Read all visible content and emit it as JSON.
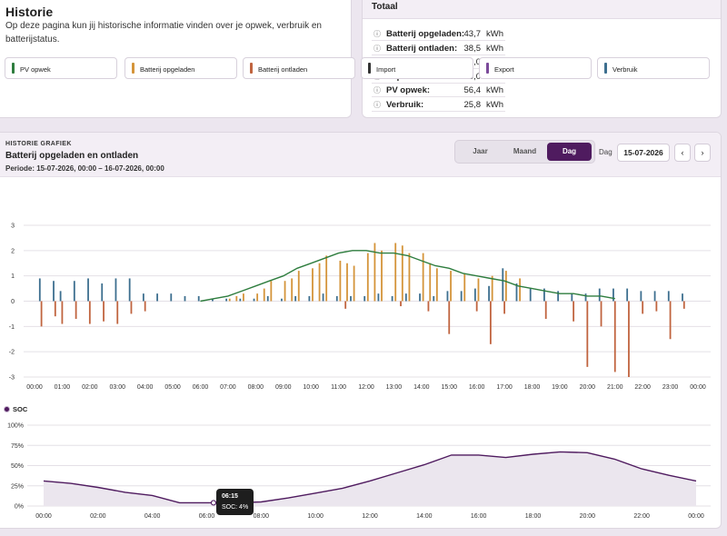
{
  "intro": {
    "title": "Historie",
    "description": "Op deze pagina kun jij historische informatie vinden over je opwek, verbruik en batterijstatus."
  },
  "totals": {
    "title": "Totaal",
    "unit": "kWh",
    "rows": [
      {
        "label": "Batterij opgeladen:",
        "value": "43,7"
      },
      {
        "label": "Batterij ontladen:",
        "value": "38,5"
      },
      {
        "label": "Import:",
        "value": "0,0"
      },
      {
        "label": "Export:",
        "value": "0,0"
      },
      {
        "label": "PV opwek:",
        "value": "56,4"
      },
      {
        "label": "Verbruik:",
        "value": "25,8"
      }
    ]
  },
  "history": {
    "subtitle": "HISTORIE GRAFIEK",
    "title": "Batterij opgeladen en ontladen",
    "period": "Periode: 15-07-2026, 00:00 – 16-07-2026, 00:00",
    "tabs": [
      "Jaar",
      "Maand",
      "Dag"
    ],
    "active_tab": "Dag",
    "date_label": "Dag",
    "date_value": "15-07-2026",
    "prev": "‹",
    "next": "›"
  },
  "legend": [
    {
      "label": "PV opwek",
      "color": "#2e7d3e"
    },
    {
      "label": "Batterij opgeladen",
      "color": "#d4943a"
    },
    {
      "label": "Batterij ontladen",
      "color": "#c0643f"
    },
    {
      "label": "Import",
      "color": "#333333"
    },
    {
      "label": "Export",
      "color": "#7b4a9a"
    },
    {
      "label": "Verbruik",
      "color": "#3d6f8f"
    }
  ],
  "soc_legend": "SOC",
  "tooltip": {
    "time": "06:15",
    "text": "SOC: 4%"
  },
  "chart_data": [
    {
      "type": "bar",
      "x_ticks": [
        "00:00",
        "01:00",
        "02:00",
        "03:00",
        "04:00",
        "05:00",
        "06:00",
        "07:00",
        "08:00",
        "09:00",
        "10:00",
        "11:00",
        "12:00",
        "13:00",
        "14:00",
        "15:00",
        "16:00",
        "17:00",
        "18:00",
        "19:00",
        "20:00",
        "21:00",
        "22:00",
        "23:00",
        "00:00"
      ],
      "y_ticks": [
        "3",
        "2",
        "1",
        "0",
        "-1",
        "-2",
        "-3"
      ],
      "ylim": [
        -3,
        3
      ],
      "series": [
        {
          "name": "Verbruik",
          "x": [
            0.25,
            0.75,
            1.0,
            1.5,
            2.0,
            2.5,
            3.0,
            3.5,
            4.0,
            4.5,
            5.0,
            5.5,
            6.0,
            6.5,
            7.0,
            7.5,
            8.0,
            8.5,
            9.0,
            9.5,
            10.0,
            10.5,
            11.0,
            11.5,
            12.0,
            12.5,
            13.0,
            13.5,
            14.0,
            14.5,
            15.0,
            15.5,
            16.0,
            16.5,
            17.0,
            17.5,
            18.0,
            18.5,
            19.0,
            19.5,
            20.0,
            20.5,
            21.0,
            21.5,
            22.0,
            22.5,
            23.0,
            23.5
          ],
          "values": [
            0.9,
            0.8,
            0.4,
            0.8,
            0.9,
            0.7,
            0.9,
            0.9,
            0.3,
            0.3,
            0.3,
            0.2,
            0.2,
            0.1,
            0.1,
            0.1,
            0.1,
            0.2,
            0.1,
            0.2,
            0.2,
            0.3,
            0.2,
            0.2,
            0.2,
            0.3,
            0.2,
            0.3,
            0.3,
            0.2,
            0.4,
            0.4,
            0.5,
            0.6,
            1.3,
            0.7,
            0.5,
            0.5,
            0.4,
            0.3,
            0.3,
            0.5,
            0.5,
            0.5,
            0.4,
            0.4,
            0.4,
            0.3
          ]
        },
        {
          "name": "Batterij opgeladen",
          "x": [
            7.0,
            7.25,
            7.5,
            8.0,
            8.25,
            8.5,
            9.0,
            9.25,
            9.5,
            10.0,
            10.25,
            10.5,
            11.0,
            11.25,
            11.5,
            12.0,
            12.25,
            12.5,
            13.0,
            13.25,
            13.5,
            14.0,
            14.25,
            14.5,
            15.0,
            15.5,
            16.0,
            16.5,
            17.0,
            17.5
          ],
          "values": [
            0.1,
            0.2,
            0.3,
            0.3,
            0.5,
            0.8,
            0.8,
            0.9,
            1.2,
            1.3,
            1.5,
            1.8,
            1.6,
            1.5,
            1.4,
            1.9,
            2.3,
            2.0,
            2.3,
            2.2,
            1.9,
            1.9,
            1.5,
            1.3,
            1.2,
            1.1,
            0.9,
            1.0,
            1.2,
            0.9
          ]
        },
        {
          "name": "Batterij ontladen",
          "x": [
            0.25,
            0.75,
            1.0,
            1.5,
            2.0,
            2.5,
            3.0,
            3.5,
            4.0,
            11.25,
            13.25,
            14.25,
            15.0,
            16.0,
            16.5,
            17.0,
            18.5,
            19.5,
            20.0,
            20.5,
            21.0,
            21.5,
            22.0,
            22.5,
            23.0,
            23.5
          ],
          "values": [
            -1.0,
            -0.6,
            -0.9,
            -0.7,
            -0.9,
            -0.8,
            -0.9,
            -0.5,
            -0.4,
            -0.3,
            -0.2,
            -0.4,
            -1.3,
            -0.4,
            -1.7,
            -0.5,
            -0.7,
            -0.8,
            -2.6,
            -1.0,
            -2.8,
            -3.0,
            -0.5,
            -0.4,
            -1.5,
            -0.3
          ]
        },
        {
          "name": "PV opwek",
          "type": "line",
          "x": [
            6.0,
            6.5,
            7.0,
            7.5,
            8.0,
            8.5,
            9.0,
            9.5,
            10.0,
            10.5,
            11.0,
            11.5,
            12.0,
            12.5,
            13.0,
            13.5,
            14.0,
            14.5,
            15.0,
            15.5,
            16.0,
            16.5,
            17.0,
            17.5,
            18.0,
            18.5,
            19.0,
            19.5,
            20.0,
            20.5,
            21.0
          ],
          "values": [
            0.0,
            0.1,
            0.2,
            0.4,
            0.6,
            0.8,
            1.0,
            1.3,
            1.5,
            1.7,
            1.9,
            2.0,
            2.0,
            1.9,
            1.9,
            1.8,
            1.6,
            1.4,
            1.3,
            1.1,
            1.0,
            0.9,
            0.8,
            0.6,
            0.5,
            0.4,
            0.3,
            0.3,
            0.2,
            0.2,
            0.1
          ]
        }
      ]
    },
    {
      "type": "area",
      "series": [
        {
          "name": "SOC",
          "x": [
            0,
            1,
            2,
            3,
            4,
            5,
            6,
            6.25,
            7,
            8,
            9,
            10,
            11,
            12,
            13,
            14,
            15,
            16,
            17,
            18,
            19,
            20,
            21,
            22,
            23,
            24
          ],
          "values": [
            31,
            28,
            23,
            17,
            13,
            4,
            4,
            4,
            4,
            5,
            10,
            16,
            22,
            31,
            41,
            51,
            63,
            63,
            60,
            64,
            67,
            66,
            58,
            46,
            38,
            31
          ]
        }
      ],
      "x_ticks": [
        "00:00",
        "02:00",
        "04:00",
        "06:00",
        "08:00",
        "10:00",
        "12:00",
        "14:00",
        "16:00",
        "18:00",
        "20:00",
        "22:00",
        "00:00"
      ],
      "y_ticks": [
        "100%",
        "75%",
        "50%",
        "25%",
        "0%"
      ],
      "ylim": [
        0,
        100
      ]
    }
  ]
}
